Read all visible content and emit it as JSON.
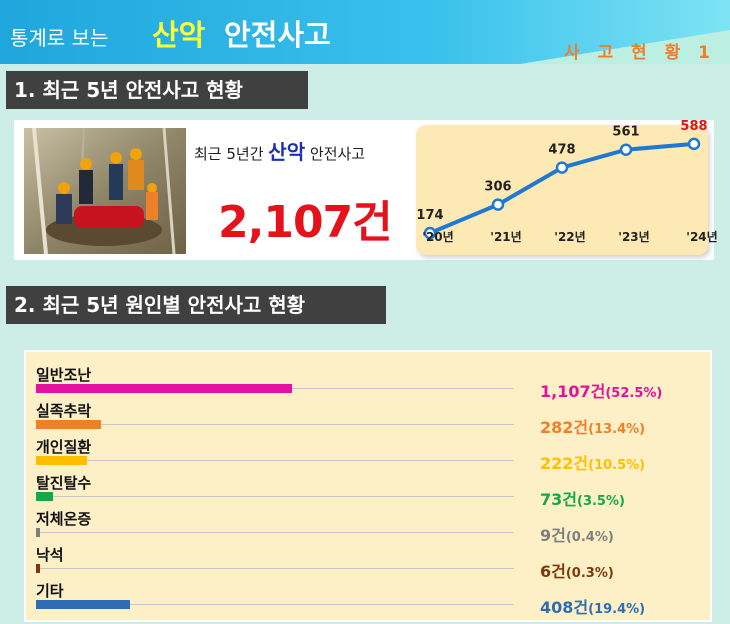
{
  "header": {
    "lead": "통계로 보는",
    "keyword": "산악",
    "rest": "안전사고",
    "tag": "사 고 현 황 1"
  },
  "section1": {
    "title": "1. 최근 5년 안전사고 현황",
    "mid_prefix": "최근 5년간",
    "mid_keyword": "산악",
    "mid_suffix": "안전사고",
    "total": "2,107건"
  },
  "section2": {
    "title": "2. 최근 5년 원인별 안전사고 현황"
  },
  "colors": {
    "banner": "#1fa6dc",
    "keyword_yellow": "#ffff33",
    "total_red": "#e3121b",
    "trend_line": "#1f78d1",
    "trend_highlight": "#e3121b"
  },
  "chart_data": [
    {
      "type": "line",
      "categories": [
        "'20년",
        "'21년",
        "'22년",
        "'23년",
        "'24년"
      ],
      "values": [
        174,
        306,
        478,
        561,
        588
      ],
      "value_labels": [
        "174",
        "306",
        "478",
        "561",
        "588"
      ],
      "highlight_index": 4,
      "grid": false
    },
    {
      "type": "bar",
      "orientation": "horizontal",
      "categories": [
        "일반조난",
        "실족추락",
        "개인질환",
        "탈진탈수",
        "저체온증",
        "낙석",
        "기타"
      ],
      "values": [
        1107,
        282,
        222,
        73,
        9,
        6,
        408
      ],
      "percents": [
        52.5,
        13.4,
        10.5,
        3.5,
        0.4,
        0.3,
        19.4
      ],
      "value_labels": [
        "1,107건",
        "282건",
        "222건",
        "73건",
        "9건",
        "6건",
        "408건"
      ],
      "percent_labels": [
        "(52.5%)",
        "(13.4%)",
        "(10.5%)",
        "(3.5%)",
        "(0.4%)",
        "(0.3%)",
        "(19.4%)"
      ],
      "colors": [
        "#e3119e",
        "#f07f2a",
        "#ffbf00",
        "#13a84a",
        "#7f7f7f",
        "#7a3a0c",
        "#2e6db4"
      ],
      "grid": false
    }
  ]
}
